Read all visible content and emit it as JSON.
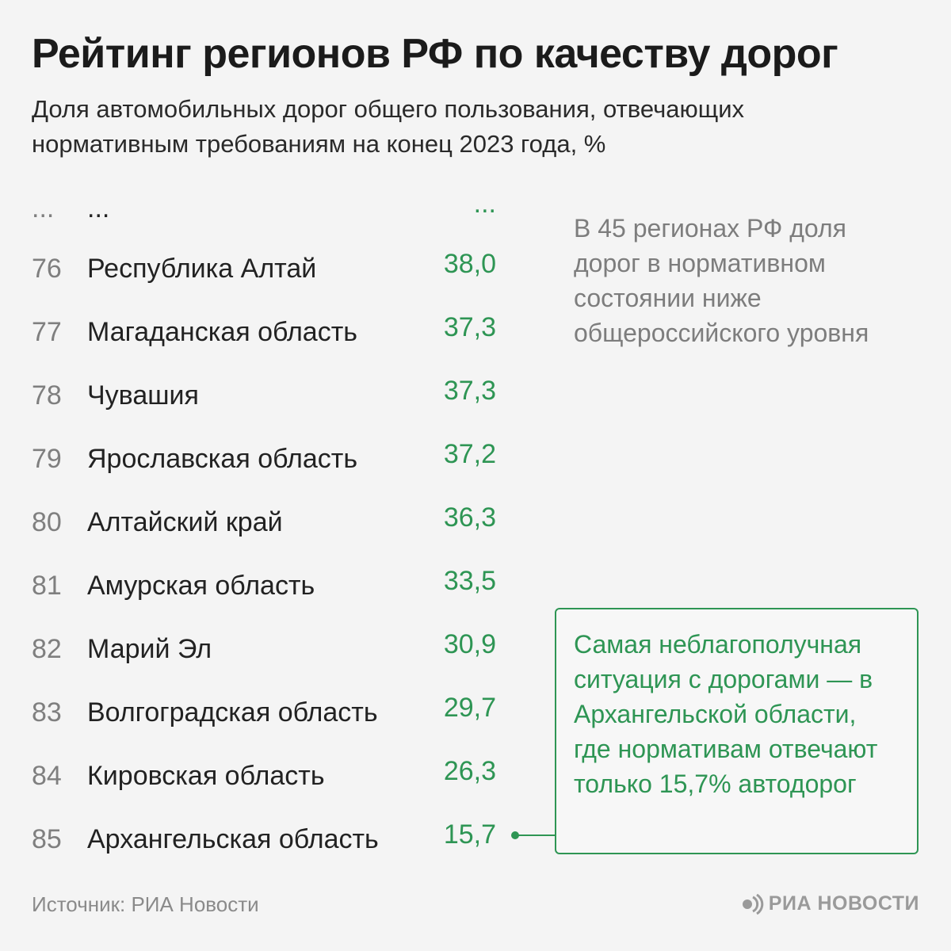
{
  "header": {
    "title": "Рейтинг регионов РФ по качеству дорог",
    "subtitle": "Доля автомобильных дорог общего пользования, отвечающих нормативным требованиям на конец 2023 года, %"
  },
  "colors": {
    "accent": "#2e9554",
    "rank": "#7f7f7f",
    "note": "#7d7d7d",
    "background": "#f4f4f4"
  },
  "chart_data": {
    "type": "table",
    "title": "Рейтинг регионов РФ по качеству дорог",
    "subtitle": "Доля автомобильных дорог общего пользования, отвечающих нормативным требованиям на конец 2023 года, %",
    "columns": [
      "rank",
      "region",
      "value"
    ],
    "ellipsis": {
      "rank": "...",
      "region": "...",
      "value": "..."
    },
    "rows": [
      {
        "rank": "76",
        "region": "Республика Алтай",
        "value": "38,0"
      },
      {
        "rank": "77",
        "region": "Магаданская область",
        "value": "37,3"
      },
      {
        "rank": "78",
        "region": "Чувашия",
        "value": "37,3"
      },
      {
        "rank": "79",
        "region": "Ярославская область",
        "value": "37,2"
      },
      {
        "rank": "80",
        "region": "Алтайский край",
        "value": "36,3"
      },
      {
        "rank": "81",
        "region": "Амурская область",
        "value": "33,5"
      },
      {
        "rank": "82",
        "region": "Марий Эл",
        "value": "30,9"
      },
      {
        "rank": "83",
        "region": "Волгоградская область",
        "value": "29,7"
      },
      {
        "rank": "84",
        "region": "Кировская область",
        "value": "26,3"
      },
      {
        "rank": "85",
        "region": "Архангельская область",
        "value": "15,7"
      }
    ],
    "highlighted_row": 9
  },
  "note": "В 45 регионах РФ доля дорог в нормативном состоянии ниже общероссийского уровня",
  "callout": "Самая неблагополучная ситуация с дорогами — в Архангельской области, где нормативам отвечают только 15,7% автодорог",
  "footer": {
    "source": "Источник: РИА Новости",
    "logo_text": "РИА НОВОСТИ",
    "logo_icon": "ria-logo-icon"
  }
}
